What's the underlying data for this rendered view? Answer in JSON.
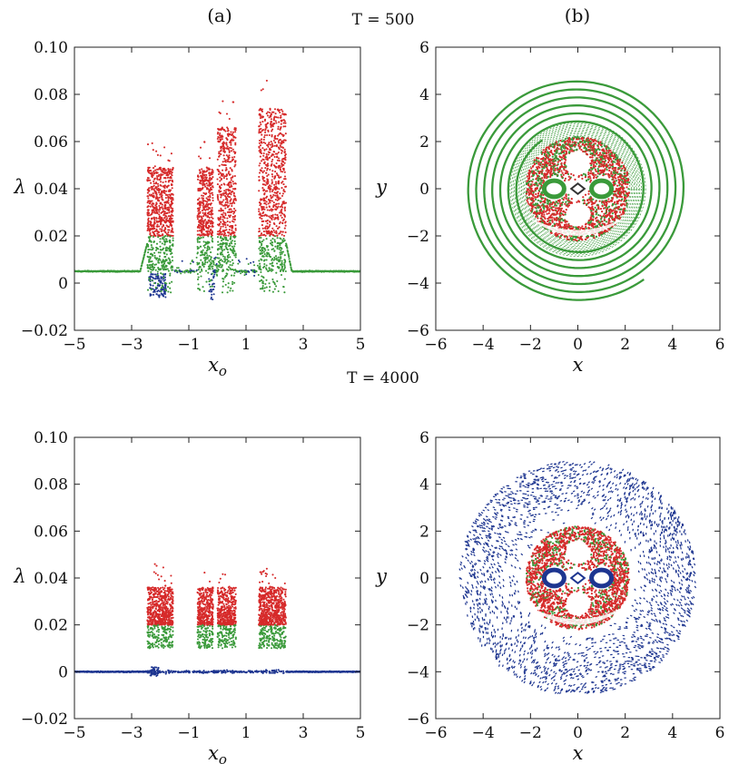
{
  "figure": {
    "panel_labels": [
      "(a)",
      "(b)"
    ],
    "time_labels": [
      "T = 500",
      "T = 4000"
    ]
  },
  "colors": {
    "red": "#d62a2a",
    "green": "#3a9a3a",
    "blue": "#1d3590",
    "axis": "#222222"
  },
  "chart_data": [
    {
      "type": "scatter",
      "panel": "(a)",
      "time": "T = 500",
      "xlabel": "x_o",
      "ylabel": "λ",
      "xlim": [
        -5,
        5
      ],
      "ylim": [
        -0.02,
        0.1
      ],
      "xticks": [
        "−5",
        "−3",
        "−1",
        "1",
        "3",
        "5"
      ],
      "yticks": [
        "−0.02",
        "0",
        "0.02",
        "0.04",
        "0.06",
        "0.08",
        "0.10"
      ],
      "flat_level": 0.005,
      "bands": [
        {
          "x": [
            -2.45,
            -1.55
          ],
          "max": 0.061
        },
        {
          "x": [
            -0.7,
            -0.15
          ],
          "max": 0.061
        },
        {
          "x": [
            0.0,
            0.65
          ],
          "max": 0.078
        },
        {
          "x": [
            1.45,
            2.4
          ],
          "max": 0.086
        }
      ],
      "series": [
        {
          "color": "red",
          "range": [
            0.02,
            0.086
          ]
        },
        {
          "color": "green",
          "range": [
            0.005,
            0.02
          ]
        },
        {
          "color": "blue",
          "range": [
            -0.007,
            0.005
          ]
        }
      ],
      "grid": false
    },
    {
      "type": "scatter",
      "panel": "(b)",
      "time": "T = 500",
      "xlabel": "x",
      "ylabel": "y",
      "xlim": [
        -6,
        6
      ],
      "ylim": [
        -6,
        6
      ],
      "xticks": [
        "−6",
        "−4",
        "−2",
        "0",
        "2",
        "4",
        "6"
      ],
      "yticks": [
        "−6",
        "−4",
        "−2",
        "0",
        "2",
        "4",
        "6"
      ],
      "structure": {
        "outer_spiral": {
          "color": "green",
          "r_range": [
            2.6,
            4.7
          ]
        },
        "chaotic_annulus": {
          "color": "red",
          "r_range": [
            0.4,
            2.2
          ]
        },
        "islands": [
          {
            "x": -1,
            "y": 0,
            "color": "green"
          },
          {
            "x": 1,
            "y": 0,
            "color": "green"
          }
        ]
      },
      "grid": false
    },
    {
      "type": "scatter",
      "panel": "(a)",
      "time": "T = 4000",
      "xlabel": "x_o",
      "ylabel": "λ",
      "xlim": [
        -5,
        5
      ],
      "ylim": [
        -0.02,
        0.1
      ],
      "xticks": [
        "−5",
        "−3",
        "−1",
        "1",
        "3",
        "5"
      ],
      "yticks": [
        "−0.02",
        "0",
        "0.02",
        "0.04",
        "0.06",
        "0.08",
        "0.10"
      ],
      "flat_level": 0.0,
      "bands": [
        {
          "x": [
            -2.45,
            -1.55
          ],
          "max": 0.046
        },
        {
          "x": [
            -0.7,
            -0.15
          ],
          "max": 0.043
        },
        {
          "x": [
            0.0,
            0.65
          ],
          "max": 0.042
        },
        {
          "x": [
            1.45,
            2.4
          ],
          "max": 0.044
        }
      ],
      "series": [
        {
          "color": "red",
          "range": [
            0.02,
            0.049
          ]
        },
        {
          "color": "green",
          "range": [
            0.01,
            0.02
          ]
        },
        {
          "color": "blue",
          "range": [
            -0.002,
            0.003
          ]
        }
      ],
      "grid": false
    },
    {
      "type": "scatter",
      "panel": "(b)",
      "time": "T = 4000",
      "xlabel": "x",
      "ylabel": "y",
      "xlim": [
        -6,
        6
      ],
      "ylim": [
        -6,
        6
      ],
      "xticks": [
        "−6",
        "−4",
        "−2",
        "0",
        "2",
        "4",
        "6"
      ],
      "yticks": [
        "−6",
        "−4",
        "−2",
        "0",
        "2",
        "4",
        "6"
      ],
      "structure": {
        "outer_disk": {
          "color": "blue",
          "r_range": [
            2.3,
            5.0
          ]
        },
        "chaotic_annulus": {
          "color": "red",
          "r_range": [
            0.4,
            2.2
          ]
        },
        "islands": [
          {
            "x": -1,
            "y": 0,
            "color": "blue"
          },
          {
            "x": 1,
            "y": 0,
            "color": "blue"
          }
        ]
      },
      "grid": false
    }
  ]
}
